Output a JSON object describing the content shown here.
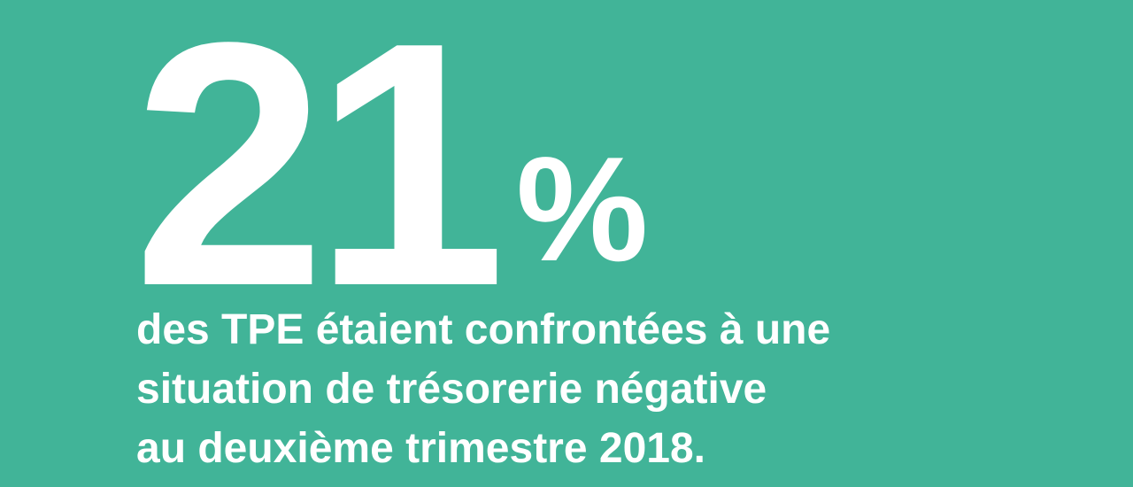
{
  "stat": {
    "value": "21",
    "unit": "%",
    "caption_lines": [
      "des TPE étaient confrontées à une",
      "situation de trésorerie négative",
      "au deuxième trimestre 2018."
    ]
  },
  "colors": {
    "background": "#41b498",
    "text": "#ffffff"
  }
}
